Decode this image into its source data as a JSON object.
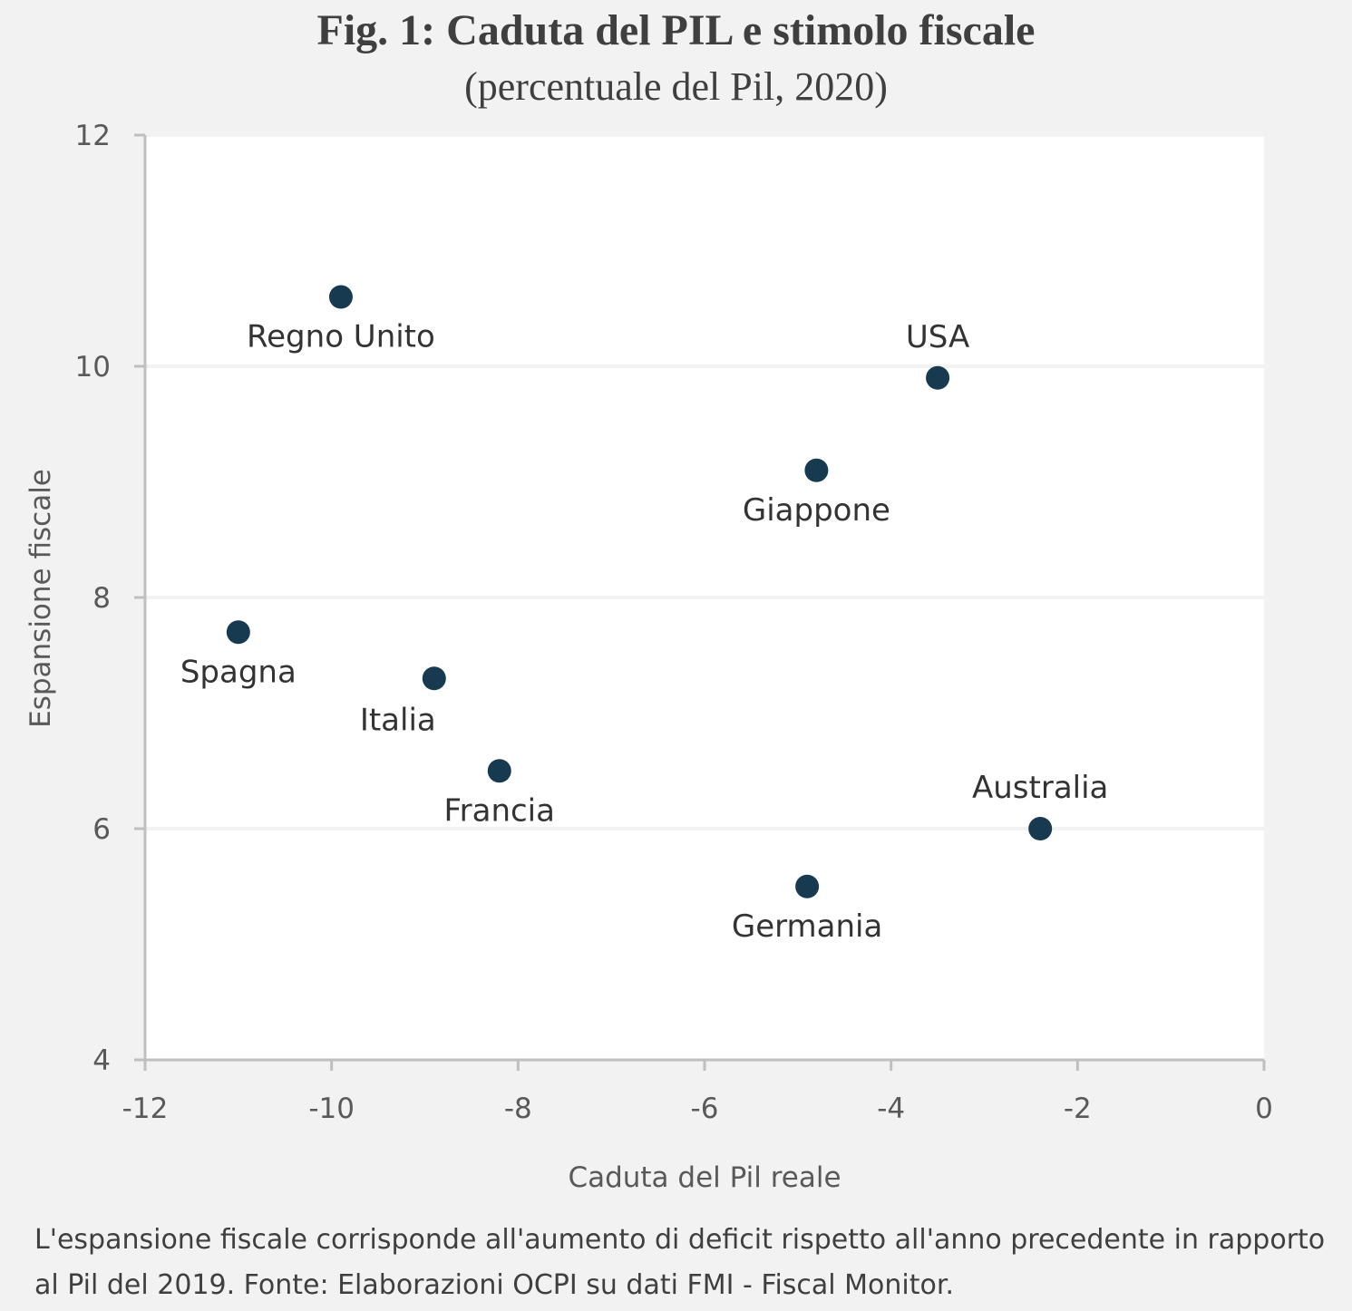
{
  "title": "Fig. 1: Caduta del PIL e stimolo fiscale",
  "subtitle": "(percentuale del Pil, 2020)",
  "note": "L'espansione fiscale corrisponde all'aumento di deficit rispetto all'anno precedente in rapporto al Pil del 2019. Fonte: Elaborazioni OCPI su dati FMI - Fiscal Monitor.",
  "colors": {
    "background": "#f2f2f2",
    "plot_background": "#ffffff",
    "marker": "#173a50",
    "axis": "#bfbfbf",
    "gridline": "#f2f2f2"
  },
  "chart_data": {
    "type": "scatter",
    "title": "Fig. 1: Caduta del PIL e stimolo fiscale",
    "subtitle": "(percentuale del Pil, 2020)",
    "xlabel": "Caduta del Pil reale",
    "ylabel": "Espansione fiscale",
    "xlim": [
      -12,
      0
    ],
    "ylim": [
      4,
      12
    ],
    "xticks": [
      -12,
      -10,
      -8,
      -6,
      -4,
      -2,
      0
    ],
    "yticks": [
      4,
      6,
      8,
      10,
      12
    ],
    "xtick_labels": [
      "-12",
      "-10",
      "-8",
      "-6",
      "-4",
      "-2",
      "0"
    ],
    "ytick_labels": [
      "4",
      "6",
      "8",
      "10",
      "12"
    ],
    "grid": "horizontal",
    "legend": "none",
    "points": [
      {
        "label": "Regno Unito",
        "x": -9.9,
        "y": 10.6,
        "label_pos": "below"
      },
      {
        "label": "USA",
        "x": -3.5,
        "y": 9.9,
        "label_pos": "above"
      },
      {
        "label": "Giappone",
        "x": -4.8,
        "y": 9.1,
        "label_pos": "below"
      },
      {
        "label": "Spagna",
        "x": -11.0,
        "y": 7.7,
        "label_pos": "below"
      },
      {
        "label": "Italia",
        "x": -8.9,
        "y": 7.3,
        "label_pos": "below-left"
      },
      {
        "label": "Francia",
        "x": -8.2,
        "y": 6.5,
        "label_pos": "below"
      },
      {
        "label": "Australia",
        "x": -2.4,
        "y": 6.0,
        "label_pos": "above"
      },
      {
        "label": "Germania",
        "x": -4.9,
        "y": 5.5,
        "label_pos": "below"
      }
    ]
  }
}
